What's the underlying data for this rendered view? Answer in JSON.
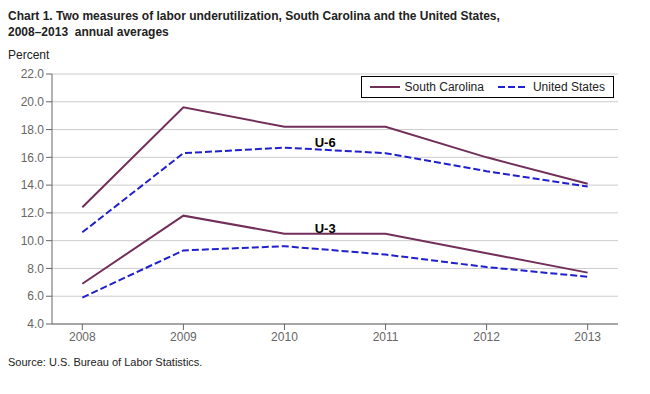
{
  "chart_data": {
    "type": "line",
    "title": "Chart 1. Two measures of labor underutilization, South Carolina and the United States,\n2008–2013  annual averages",
    "ylabel": "Percent",
    "source": "Source: U.S. Bureau of Labor Statistics.",
    "x": [
      2008,
      2009,
      2010,
      2011,
      2012,
      2013
    ],
    "series": [
      {
        "name": "South Carolina",
        "color": "#722F5A",
        "line_style": "solid",
        "values": [
          12.4,
          19.6,
          18.2,
          18.2,
          16.0,
          14.1
        ]
      },
      {
        "name": "United States",
        "color": "#2020CC",
        "line_style": "dashed",
        "values": [
          10.6,
          16.3,
          16.7,
          16.3,
          15.0,
          13.9
        ]
      },
      {
        "name": "South Carolina",
        "color": "#722F5A",
        "line_style": "solid",
        "values": [
          6.9,
          11.8,
          10.5,
          10.5,
          9.1,
          7.7
        ]
      },
      {
        "name": "United States",
        "color": "#2020CC",
        "line_style": "dashed",
        "values": [
          5.9,
          9.3,
          9.6,
          9.0,
          8.1,
          7.4
        ]
      }
    ],
    "annotations": [
      {
        "text": "U-6",
        "x": 2010.25,
        "y": 17.1
      },
      {
        "text": "U-3",
        "x": 2010.25,
        "y": 10.85
      }
    ],
    "xlim": [
      2007.7,
      2013.3
    ],
    "xticks": [
      2008,
      2009,
      2010,
      2011,
      2012,
      2013
    ],
    "ylim": [
      4.0,
      22.0
    ],
    "yticks": [
      {
        "value": 4,
        "label": "4.0"
      },
      {
        "value": 6,
        "label": "6.0"
      },
      {
        "value": 8,
        "label": "8.0"
      },
      {
        "value": 10,
        "label": "10.0"
      },
      {
        "value": 12,
        "label": "12.0"
      },
      {
        "value": 14,
        "label": "14.0"
      },
      {
        "value": 16,
        "label": "16.0"
      },
      {
        "value": 18,
        "label": "18.0"
      },
      {
        "value": 20,
        "label": "20.0"
      },
      {
        "value": 22,
        "label": "22.0"
      }
    ],
    "grid": true,
    "legend": "upper right"
  }
}
